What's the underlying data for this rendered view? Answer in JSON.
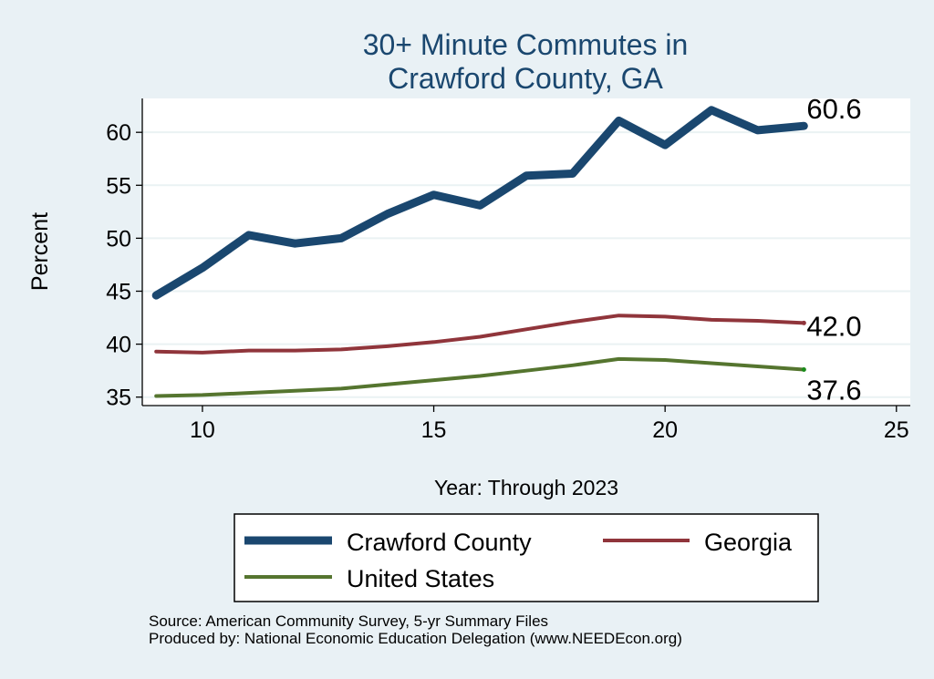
{
  "chart_data": {
    "type": "line",
    "title_lines": [
      "30+ Minute Commutes in",
      "Crawford County, GA"
    ],
    "xlabel": "Year: Through 2023",
    "ylabel": "Percent",
    "xlim": [
      8.7,
      25.3
    ],
    "ylim": [
      34.2,
      63.2
    ],
    "xticks": [
      10,
      15,
      20,
      25
    ],
    "yticks": [
      35,
      40,
      45,
      50,
      55,
      60
    ],
    "grid": true,
    "legend_position": "bottom",
    "x": [
      9,
      10,
      11,
      12,
      13,
      14,
      15,
      16,
      17,
      18,
      19,
      20,
      21,
      22,
      23
    ],
    "series": [
      {
        "name": "Crawford County",
        "color": "#1a476f",
        "values": [
          44.6,
          47.2,
          50.3,
          49.5,
          50.0,
          52.3,
          54.1,
          53.1,
          55.9,
          56.1,
          61.1,
          58.8,
          62.1,
          60.2,
          60.6
        ],
        "end_label": "60.6"
      },
      {
        "name": "Georgia",
        "color": "#90353b",
        "values": [
          39.3,
          39.2,
          39.4,
          39.4,
          39.5,
          39.8,
          40.2,
          40.7,
          41.4,
          42.1,
          42.7,
          42.6,
          42.3,
          42.2,
          42.0
        ],
        "end_label": "42.0"
      },
      {
        "name": "United States",
        "color": "#55752f",
        "values": [
          35.1,
          35.2,
          35.4,
          35.6,
          35.8,
          36.2,
          36.6,
          37.0,
          37.5,
          38.0,
          38.6,
          38.5,
          38.2,
          37.9,
          37.6
        ],
        "end_label": "37.6"
      }
    ]
  },
  "colors": {
    "background": "#e9f1f5",
    "plot_background": "#ffffff",
    "title": "#1a476f",
    "grid": "#eaf2f3"
  },
  "footer": {
    "source": "Source: American Community Survey, 5-yr Summary Files",
    "produced_by": "Produced by: National Economic Education Delegation (www.NEEDEcon.org)"
  }
}
